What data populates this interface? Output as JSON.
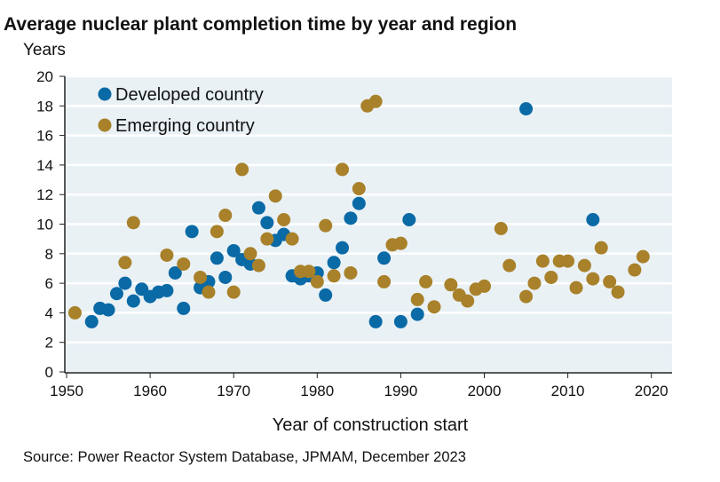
{
  "chart_data": {
    "type": "scatter",
    "title": "Average nuclear plant completion time by year and region",
    "ylabel": "Years",
    "xlabel": "Year of construction start",
    "source": "Source: Power Reactor System Database, JPMAM, December 2023",
    "xlim": [
      1950,
      2023
    ],
    "ylim": [
      0,
      20
    ],
    "xticks": [
      1950,
      1960,
      1970,
      1980,
      1990,
      2000,
      2010,
      2020
    ],
    "yticks": [
      0,
      2,
      4,
      6,
      8,
      10,
      12,
      14,
      16,
      18,
      20
    ],
    "grid": "horizontal",
    "legend_position": "top-left",
    "series": [
      {
        "name": "Developed country",
        "color": "#0a6aa6",
        "x": [
          1953,
          1954,
          1955,
          1956,
          1957,
          1958,
          1959,
          1960,
          1961,
          1962,
          1963,
          1964,
          1965,
          1966,
          1967,
          1968,
          1969,
          1970,
          1971,
          1972,
          1973,
          1974,
          1975,
          1976,
          1977,
          1978,
          1979,
          1980,
          1981,
          1982,
          1983,
          1984,
          1985,
          1987,
          1988,
          1990,
          1991,
          1992,
          2005,
          2013
        ],
        "y": [
          3.4,
          4.3,
          4.2,
          5.3,
          6.0,
          4.8,
          5.6,
          5.1,
          5.4,
          5.5,
          6.7,
          4.3,
          9.5,
          5.7,
          6.1,
          7.7,
          6.4,
          8.2,
          7.6,
          7.3,
          11.1,
          10.1,
          8.9,
          9.3,
          6.5,
          6.3,
          6.5,
          6.7,
          5.2,
          7.4,
          8.4,
          10.4,
          11.4,
          3.4,
          7.7,
          3.4,
          10.3,
          3.9,
          17.8,
          10.3
        ]
      },
      {
        "name": "Emerging country",
        "color": "#a8812a",
        "x": [
          1951,
          1957,
          1958,
          1962,
          1964,
          1966,
          1967,
          1968,
          1969,
          1970,
          1971,
          1972,
          1973,
          1974,
          1975,
          1976,
          1977,
          1978,
          1979,
          1980,
          1981,
          1982,
          1983,
          1984,
          1985,
          1986,
          1987,
          1988,
          1989,
          1990,
          1992,
          1993,
          1994,
          1996,
          1997,
          1998,
          1999,
          2000,
          2002,
          2003,
          2005,
          2006,
          2007,
          2008,
          2009,
          2010,
          2011,
          2012,
          2013,
          2014,
          2015,
          2016,
          2018,
          2019
        ],
        "y": [
          4.0,
          7.4,
          10.1,
          7.9,
          7.3,
          6.4,
          5.4,
          9.5,
          10.6,
          5.4,
          13.7,
          8.0,
          7.2,
          9.0,
          11.9,
          10.3,
          9.0,
          6.8,
          6.8,
          6.1,
          9.9,
          6.5,
          13.7,
          6.7,
          12.4,
          18.0,
          18.3,
          6.1,
          8.6,
          8.7,
          4.9,
          6.1,
          4.4,
          5.9,
          5.2,
          4.8,
          5.6,
          5.8,
          9.7,
          7.2,
          5.1,
          6.0,
          7.5,
          6.4,
          7.5,
          7.5,
          5.7,
          7.2,
          6.3,
          8.4,
          6.1,
          5.4,
          6.9,
          7.8
        ]
      }
    ]
  }
}
